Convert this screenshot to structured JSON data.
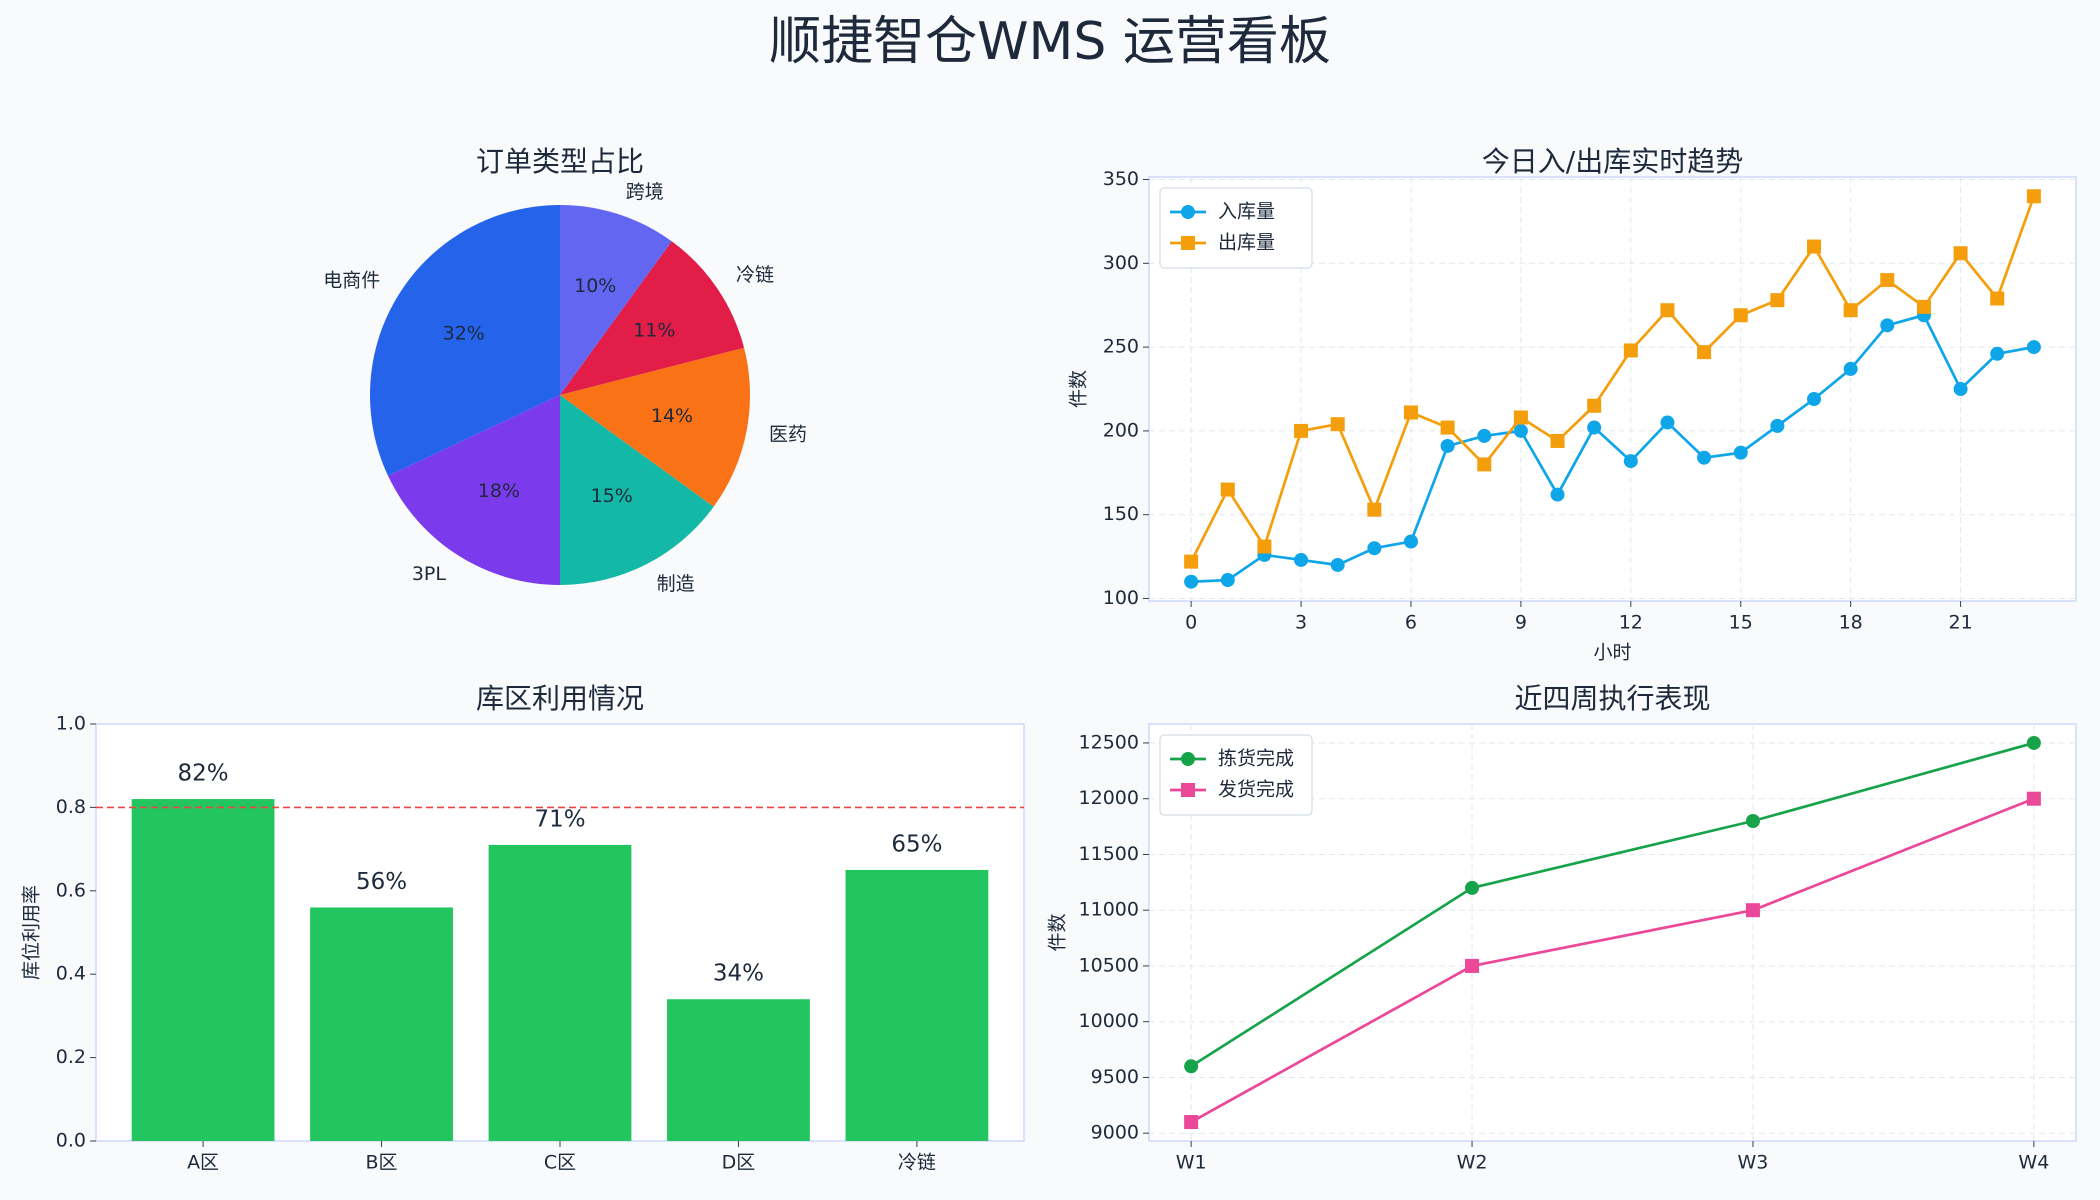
{
  "page_title": "顺捷智仓WMS 运营看板",
  "chart_data": [
    {
      "type": "pie",
      "title": "订单类型占比",
      "categories": [
        "电商件",
        "3PL",
        "制造",
        "医药",
        "冷链",
        "跨境"
      ],
      "values": [
        32,
        18,
        15,
        14,
        11,
        10
      ],
      "value_labels": [
        "32%",
        "18%",
        "15%",
        "14%",
        "11%",
        "10%"
      ],
      "colors": [
        "#2563eb",
        "#7c3aed",
        "#14b8a6",
        "#f97316",
        "#e11d48",
        "#6366f1"
      ]
    },
    {
      "type": "line",
      "title": "今日入/出库实时趋势",
      "x_label": "小时",
      "y_label": "件数",
      "x": [
        0,
        1,
        2,
        3,
        4,
        5,
        6,
        7,
        8,
        9,
        10,
        11,
        12,
        13,
        14,
        15,
        16,
        17,
        18,
        19,
        20,
        21,
        22,
        23
      ],
      "series": [
        {
          "name": "入库量",
          "color": "#0ea5e9",
          "marker": "circle",
          "values": [
            110,
            111,
            126,
            123,
            120,
            130,
            134,
            191,
            197,
            200,
            162,
            202,
            182,
            205,
            184,
            187,
            203,
            219,
            237,
            263,
            269,
            225,
            246,
            250
          ]
        },
        {
          "name": "出库量",
          "color": "#f59e0b",
          "marker": "square",
          "values": [
            122,
            165,
            131,
            200,
            204,
            153,
            211,
            202,
            180,
            208,
            194,
            215,
            248,
            272,
            247,
            269,
            278,
            310,
            272,
            290,
            274,
            306,
            279,
            340
          ]
        }
      ],
      "xlim": [
        -1.15,
        24.15
      ],
      "xticks": [
        0,
        3,
        6,
        9,
        12,
        15,
        18,
        21
      ],
      "ylim": [
        98.5,
        351.5
      ],
      "yticks": [
        100,
        150,
        200,
        250,
        300,
        350
      ],
      "grid": true,
      "legend": "upper left"
    },
    {
      "type": "bar",
      "title": "库区利用情况",
      "y_label": "库位利用率",
      "categories": [
        "A区",
        "B区",
        "C区",
        "D区",
        "冷链"
      ],
      "values": [
        0.82,
        0.56,
        0.71,
        0.34,
        0.65
      ],
      "value_labels": [
        "82%",
        "56%",
        "71%",
        "34%",
        "65%"
      ],
      "color": "#22c55e",
      "ylim": [
        0,
        1
      ],
      "yticks": [
        {
          "value": 0,
          "label": "0.0"
        },
        0.2,
        0.4,
        0.6,
        0.8,
        {
          "value": 1,
          "label": "1.0"
        }
      ],
      "reference_line": {
        "value": 0.8,
        "color": "#ef4444"
      },
      "grid": false
    },
    {
      "type": "line",
      "title": "近四周执行表现",
      "y_label": "件数",
      "categories": [
        "W1",
        "W2",
        "W3",
        "W4"
      ],
      "series": [
        {
          "name": "拣货完成",
          "color": "#16a34a",
          "marker": "circle",
          "values": [
            9600,
            11200,
            11800,
            12500
          ]
        },
        {
          "name": "发货完成",
          "color": "#ec4899",
          "marker": "square",
          "values": [
            9100,
            10500,
            11000,
            12000
          ]
        }
      ],
      "ylim": [
        8930,
        12670
      ],
      "yticks": [
        9000,
        9500,
        10000,
        10500,
        11000,
        11500,
        12000,
        12500
      ],
      "grid": true,
      "legend": "upper left"
    }
  ]
}
